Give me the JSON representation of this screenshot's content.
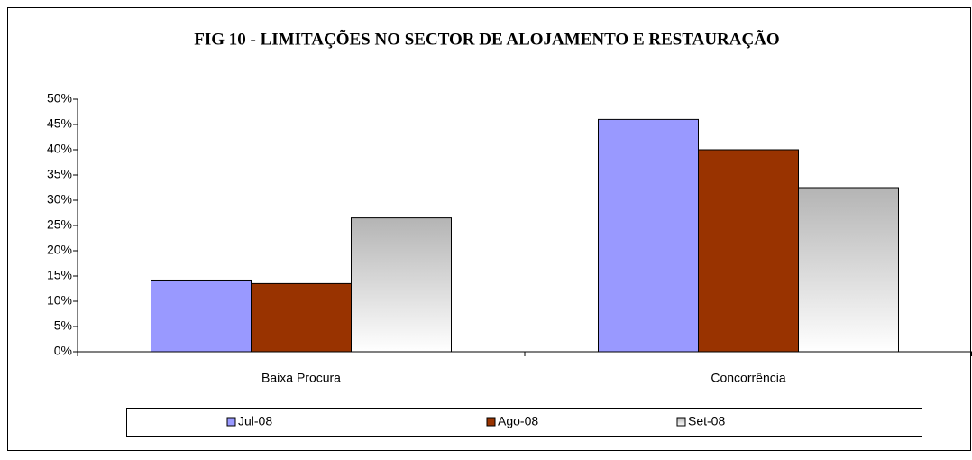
{
  "chart_data": {
    "type": "bar",
    "title": "FIG 10 - LIMITAÇÕES  NO SECTOR DE ALOJAMENTO E RESTAURAÇÃO",
    "categories": [
      "Baixa Procura",
      "Concorrência"
    ],
    "series": [
      {
        "name": "Jul-08",
        "color": "#9999ff",
        "values": [
          14.2,
          46
        ]
      },
      {
        "name": "Ago-08",
        "color": "#993300",
        "values": [
          13.5,
          40
        ]
      },
      {
        "name": "Set-08",
        "color": "#b4b4b4",
        "gradient": true,
        "values": [
          26.5,
          32.5
        ]
      }
    ],
    "ylim": [
      0,
      50
    ],
    "yticks": [
      {
        "value": 0,
        "label": "0%"
      },
      {
        "value": 5,
        "label": "5%"
      },
      {
        "value": 10,
        "label": "10%"
      },
      {
        "value": 15,
        "label": "15%"
      },
      {
        "value": 20,
        "label": "20%"
      },
      {
        "value": 25,
        "label": "25%"
      },
      {
        "value": 30,
        "label": "30%"
      },
      {
        "value": 35,
        "label": "35%"
      },
      {
        "value": 40,
        "label": "40%"
      },
      {
        "value": 45,
        "label": "45%"
      },
      {
        "value": 50,
        "label": "50%"
      }
    ],
    "grid": false,
    "legend": "bottom"
  }
}
